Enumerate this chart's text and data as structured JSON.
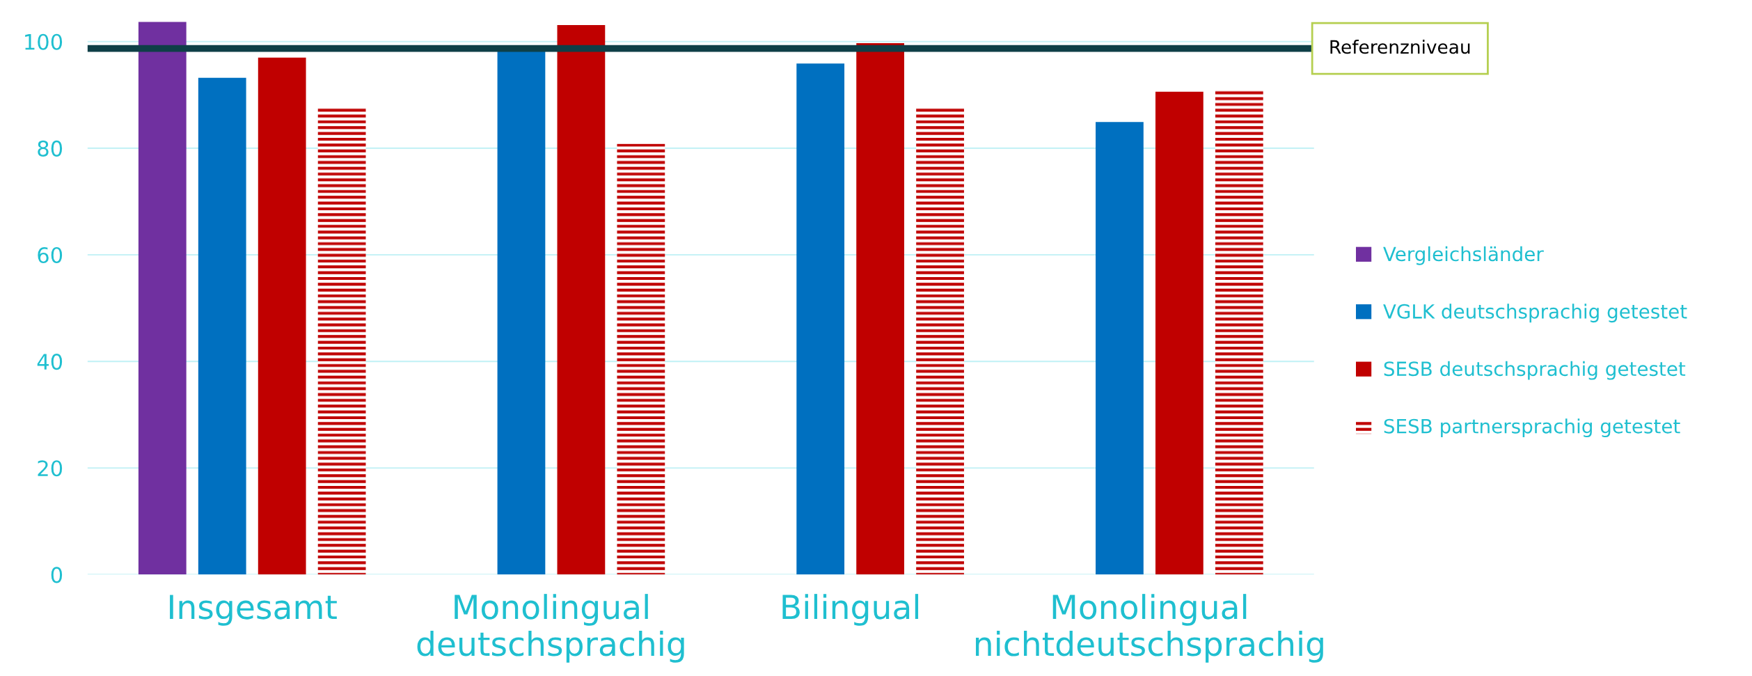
{
  "chart_data": {
    "type": "bar",
    "categories": [
      "Insgesamt",
      "Monolingual\ndeutschsprachig",
      "Bilingual",
      "Monolingual\nnichtdeutschsprachig"
    ],
    "series": [
      {
        "name": "Vergleichsländer",
        "color": "#7030a0",
        "values": [
          103.7,
          null,
          null,
          null
        ]
      },
      {
        "name": "VGLK deutschsprachig getestet",
        "color": "#0070c0",
        "values": [
          93.2,
          98.5,
          95.9,
          84.9
        ]
      },
      {
        "name": "SESB deutschsprachig getestet",
        "color": "#c00000",
        "values": [
          97.0,
          103.1,
          99.7,
          90.6
        ]
      },
      {
        "name": "SESB partnersprachig getestet",
        "color": "#c00000",
        "values": [
          87.6,
          80.8,
          87.6,
          91.1
        ]
      }
    ],
    "ylim": [
      0,
      104
    ],
    "yticks": [
      0,
      20,
      40,
      60,
      80,
      100
    ],
    "ref_lines": [
      {
        "axis": "y",
        "value": 98.7,
        "label": "Referenzniveau",
        "color": "#0e3f47"
      }
    ],
    "grid": "y",
    "legend": "right"
  }
}
